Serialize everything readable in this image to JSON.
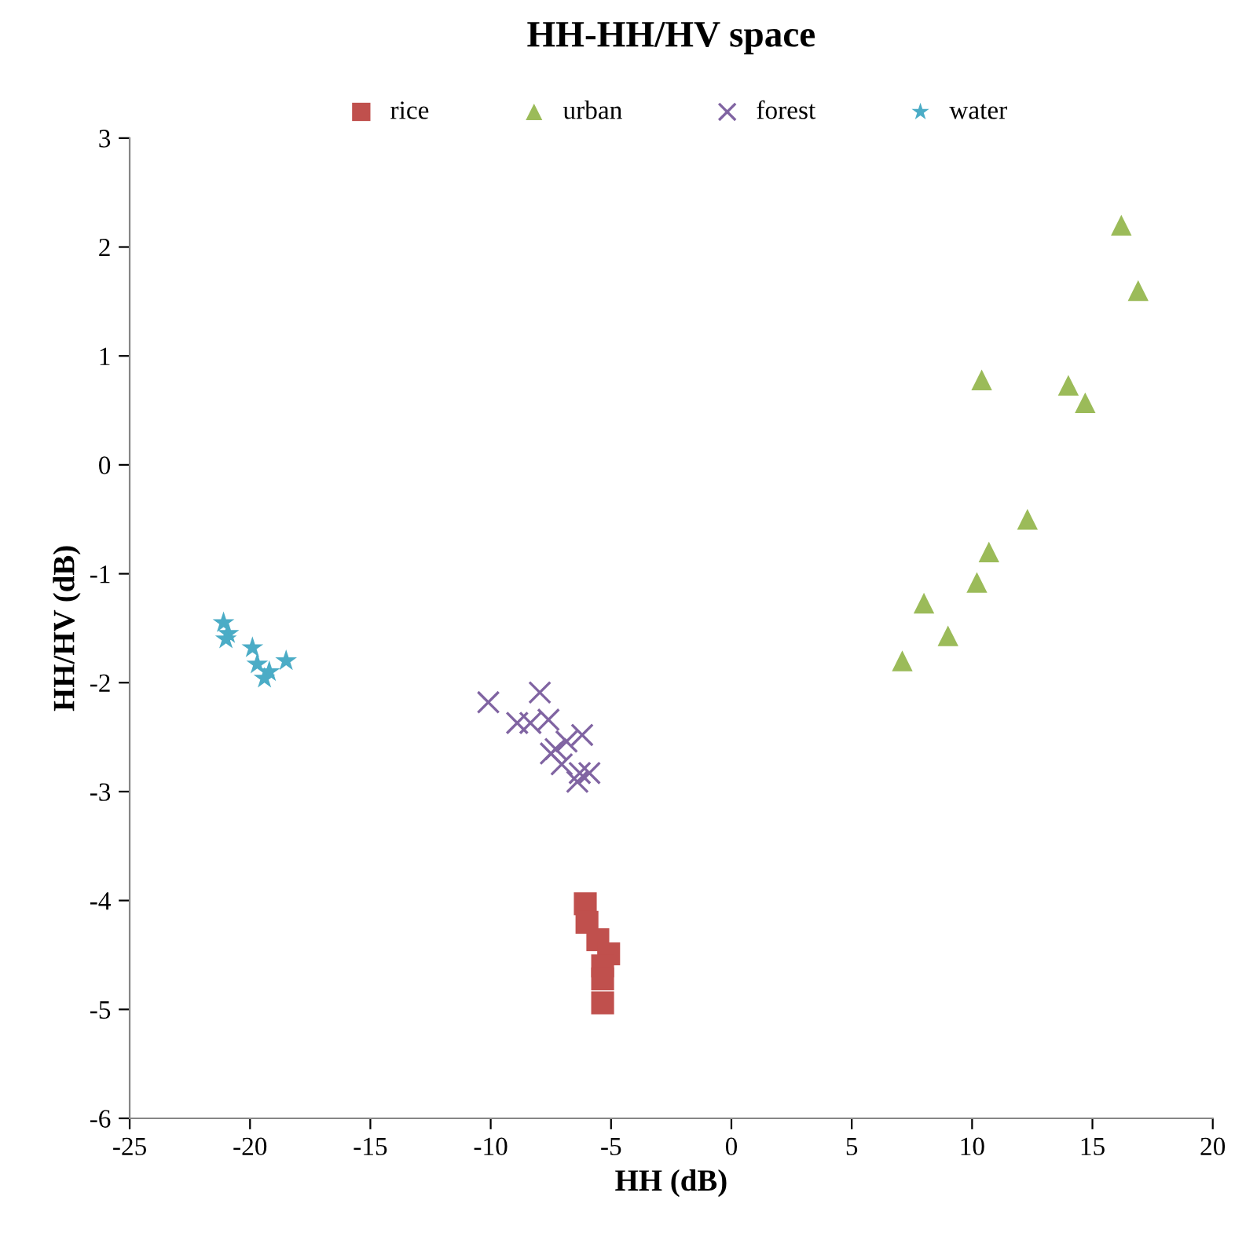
{
  "chart_data": {
    "type": "scatter",
    "title": "HH-HH/HV space",
    "xlabel": "HH (dB)",
    "ylabel": "HH/HV (dB)",
    "xlim": [
      -25,
      20
    ],
    "xticks": [
      -25,
      -20,
      -15,
      -10,
      -5,
      0,
      5,
      10,
      15,
      20
    ],
    "ylim": [
      -6,
      3
    ],
    "yticks": [
      -6,
      -5,
      -4,
      -3,
      -2,
      -1,
      0,
      1,
      2,
      3
    ],
    "grid": false,
    "legend": "top",
    "series": [
      {
        "name": "rice",
        "color": "#c0504d",
        "marker": "square",
        "x": [
          -6.07,
          -6.0,
          -5.55,
          -5.1,
          -5.35,
          -5.35,
          -5.35
        ],
        "values": [
          -4.03,
          -4.2,
          -4.36,
          -4.49,
          -4.6,
          -4.72,
          -4.94
        ]
      },
      {
        "name": "urban",
        "color": "#9bbb59",
        "marker": "triangle",
        "x": [
          16.2,
          16.9,
          10.4,
          14.0,
          14.7,
          12.3,
          10.7,
          10.2,
          8.0,
          9.0,
          7.1
        ],
        "values": [
          2.2,
          1.6,
          0.78,
          0.73,
          0.57,
          -0.5,
          -0.8,
          -1.08,
          -1.27,
          -1.57,
          -1.8
        ]
      },
      {
        "name": "forest",
        "color": "#8064a2",
        "marker": "cross",
        "x": [
          -10.1,
          -7.96,
          -8.9,
          -8.35,
          -7.6,
          -6.85,
          -6.2,
          -7.5,
          -7.05,
          -6.3,
          -5.9,
          -6.4,
          -7.3
        ],
        "values": [
          -2.18,
          -2.09,
          -2.37,
          -2.37,
          -2.34,
          -2.54,
          -2.48,
          -2.65,
          -2.75,
          -2.83,
          -2.83,
          -2.91,
          -2.61
        ]
      },
      {
        "name": "water",
        "color": "#4bacc6",
        "marker": "star",
        "x": [
          -21.1,
          -20.9,
          -21.0,
          -19.9,
          -19.2,
          -18.5,
          -19.7,
          -19.4
        ],
        "values": [
          -1.45,
          -1.55,
          -1.6,
          -1.68,
          -1.9,
          -1.8,
          -1.83,
          -1.96
        ]
      }
    ]
  }
}
